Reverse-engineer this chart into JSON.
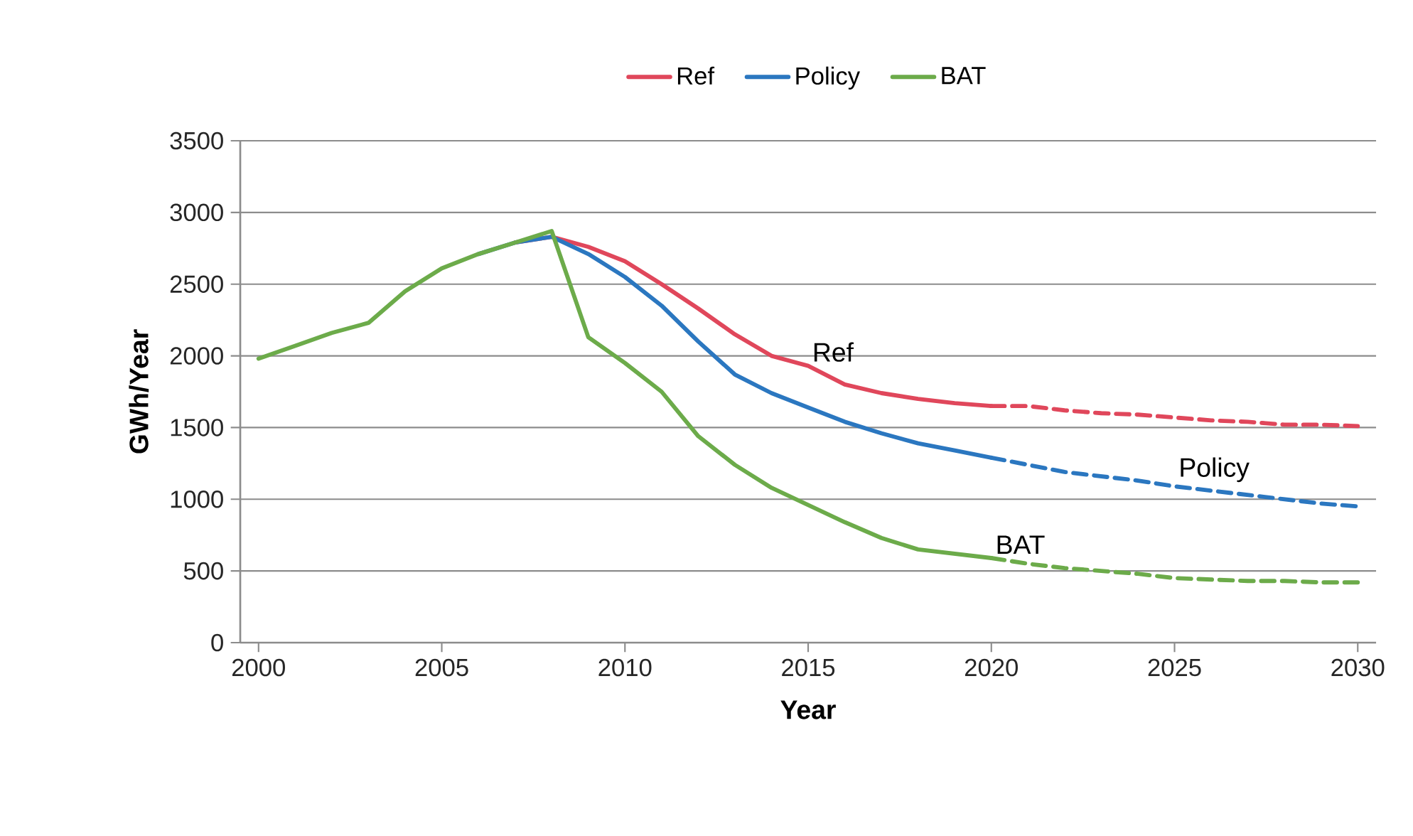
{
  "chart_data": {
    "type": "line",
    "xlabel": "Year",
    "ylabel": "GWh/Year",
    "xlim": [
      1999.5,
      2030.5
    ],
    "xticks": [
      2000,
      2005,
      2010,
      2015,
      2020,
      2025,
      2030
    ],
    "ylim": [
      0,
      3500
    ],
    "yticks": [
      0,
      500,
      1000,
      1500,
      2000,
      2500,
      3000,
      3500
    ],
    "grid": "y",
    "legend": "top",
    "marker": "none",
    "series": [
      {
        "name": "Ref",
        "color": "#e0475b",
        "line_style": "solid",
        "x": [
          2007,
          2008,
          2009,
          2010,
          2011,
          2012,
          2013,
          2014,
          2015,
          2016,
          2017,
          2018,
          2019,
          2020
        ],
        "values": [
          2790,
          2830,
          2760,
          2660,
          2500,
          2330,
          2150,
          2000,
          1930,
          1800,
          1740,
          1700,
          1670,
          1650
        ]
      },
      {
        "name": "Policy",
        "color": "#2b77c0",
        "line_style": "solid",
        "x": [
          2006,
          2007,
          2008,
          2009,
          2010,
          2011,
          2012,
          2013,
          2014,
          2015,
          2016,
          2017,
          2018,
          2019,
          2020
        ],
        "values": [
          2710,
          2790,
          2830,
          2710,
          2550,
          2350,
          2100,
          1870,
          1740,
          1640,
          1540,
          1460,
          1390,
          1340,
          1290
        ]
      },
      {
        "name": "BAT",
        "color": "#6cab4a",
        "line_style": "solid",
        "x": [
          2000,
          2001,
          2002,
          2003,
          2004,
          2005,
          2006,
          2007,
          2008,
          2009,
          2010,
          2011,
          2012,
          2013,
          2014,
          2015,
          2016,
          2017,
          2018,
          2019,
          2020
        ],
        "values": [
          1980,
          2070,
          2160,
          2230,
          2450,
          2610,
          2710,
          2790,
          2870,
          2130,
          1950,
          1750,
          1440,
          1240,
          1080,
          960,
          840,
          730,
          650,
          620,
          590
        ]
      },
      {
        "color": "#e0475b",
        "line_style": "dashed",
        "x": [
          2020,
          2021,
          2022,
          2023,
          2024,
          2025,
          2026,
          2027,
          2028,
          2029,
          2030
        ],
        "values": [
          1650,
          1650,
          1620,
          1600,
          1590,
          1570,
          1550,
          1540,
          1520,
          1520,
          1510
        ]
      },
      {
        "color": "#2b77c0",
        "line_style": "dashed",
        "x": [
          2020,
          2021,
          2022,
          2023,
          2024,
          2025,
          2026,
          2027,
          2028,
          2029,
          2030
        ],
        "values": [
          1290,
          1240,
          1190,
          1160,
          1130,
          1090,
          1060,
          1030,
          1000,
          970,
          950
        ]
      },
      {
        "color": "#6cab4a",
        "line_style": "dashed",
        "x": [
          2020,
          2021,
          2022,
          2023,
          2024,
          2025,
          2026,
          2027,
          2028,
          2029,
          2030
        ],
        "values": [
          590,
          550,
          520,
          500,
          480,
          450,
          440,
          430,
          430,
          420,
          420
        ]
      }
    ],
    "annotations": [
      {
        "text": "Ref",
        "x": 2015,
        "y": 1930
      },
      {
        "text": "Policy",
        "x": 2025,
        "y": 1090
      },
      {
        "text": "BAT",
        "x": 2020,
        "y": 590
      }
    ]
  }
}
